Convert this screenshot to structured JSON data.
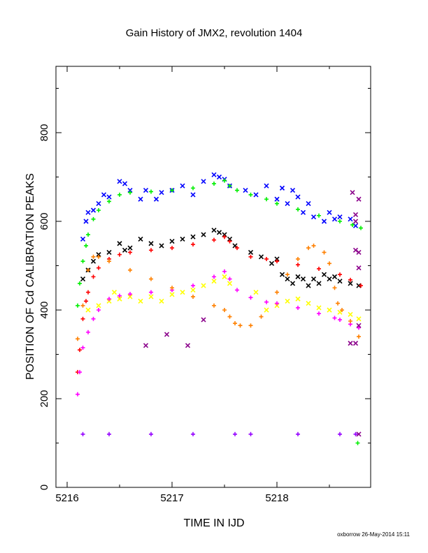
{
  "chart_data": {
    "type": "scatter",
    "title": "Gain History of JMX2, revolution 1404",
    "xlabel": "TIME IN IJD",
    "ylabel": "POSITION OF Cd CALIBRATION PEAKS",
    "credit": "oxborrow 26-May-2014 15:11",
    "xlim": [
      5215.9,
      5218.85
    ],
    "ylim": [
      0,
      950
    ],
    "x_ticks": [
      5216,
      5217,
      5218
    ],
    "y_ticks": [
      0,
      200,
      400,
      600,
      800
    ],
    "grid": false,
    "series": [
      {
        "color": "#0000ff",
        "marker": "x",
        "points": [
          [
            5216.15,
            560
          ],
          [
            5216.18,
            600
          ],
          [
            5216.2,
            620
          ],
          [
            5216.25,
            625
          ],
          [
            5216.3,
            640
          ],
          [
            5216.35,
            660
          ],
          [
            5216.4,
            655
          ],
          [
            5216.5,
            690
          ],
          [
            5216.55,
            685
          ],
          [
            5216.6,
            670
          ],
          [
            5216.7,
            650
          ],
          [
            5216.75,
            670
          ],
          [
            5216.85,
            650
          ],
          [
            5216.9,
            665
          ],
          [
            5217.0,
            670
          ],
          [
            5217.1,
            680
          ],
          [
            5217.2,
            660
          ],
          [
            5217.3,
            690
          ],
          [
            5217.4,
            705
          ],
          [
            5217.45,
            700
          ],
          [
            5217.5,
            695
          ],
          [
            5217.55,
            680
          ],
          [
            5217.7,
            670
          ],
          [
            5217.8,
            660
          ],
          [
            5217.9,
            680
          ],
          [
            5218.0,
            650
          ],
          [
            5218.05,
            675
          ],
          [
            5218.1,
            640
          ],
          [
            5218.15,
            670
          ],
          [
            5218.2,
            655
          ],
          [
            5218.25,
            620
          ],
          [
            5218.3,
            640
          ],
          [
            5218.35,
            610
          ],
          [
            5218.45,
            600
          ],
          [
            5218.5,
            620
          ],
          [
            5218.55,
            605
          ],
          [
            5218.6,
            610
          ],
          [
            5218.7,
            605
          ],
          [
            5218.75,
            590
          ]
        ]
      },
      {
        "color": "#00ee00",
        "marker": "+",
        "points": [
          [
            5216.1,
            410
          ],
          [
            5216.12,
            460
          ],
          [
            5216.15,
            510
          ],
          [
            5216.18,
            545
          ],
          [
            5216.2,
            570
          ],
          [
            5216.25,
            605
          ],
          [
            5216.3,
            625
          ],
          [
            5216.4,
            645
          ],
          [
            5216.5,
            660
          ],
          [
            5216.6,
            665
          ],
          [
            5216.8,
            667
          ],
          [
            5217.0,
            670
          ],
          [
            5217.2,
            675
          ],
          [
            5217.4,
            685
          ],
          [
            5217.5,
            692
          ],
          [
            5217.55,
            680
          ],
          [
            5217.62,
            670
          ],
          [
            5217.75,
            660
          ],
          [
            5217.9,
            650
          ],
          [
            5218.0,
            640
          ],
          [
            5218.2,
            627
          ],
          [
            5218.4,
            613
          ],
          [
            5218.6,
            600
          ],
          [
            5218.72,
            592
          ],
          [
            5218.8,
            585
          ],
          [
            5218.77,
            100
          ]
        ]
      },
      {
        "color": "#000000",
        "marker": "x",
        "points": [
          [
            5216.15,
            470
          ],
          [
            5216.2,
            490
          ],
          [
            5216.25,
            510
          ],
          [
            5216.3,
            525
          ],
          [
            5216.4,
            530
          ],
          [
            5216.5,
            550
          ],
          [
            5216.55,
            535
          ],
          [
            5216.6,
            540
          ],
          [
            5216.7,
            560
          ],
          [
            5216.8,
            550
          ],
          [
            5216.9,
            545
          ],
          [
            5217.0,
            555
          ],
          [
            5217.1,
            560
          ],
          [
            5217.2,
            565
          ],
          [
            5217.3,
            570
          ],
          [
            5217.4,
            580
          ],
          [
            5217.45,
            575
          ],
          [
            5217.5,
            570
          ],
          [
            5217.55,
            560
          ],
          [
            5217.6,
            545
          ],
          [
            5217.75,
            530
          ],
          [
            5217.85,
            520
          ],
          [
            5217.95,
            505
          ],
          [
            5218.0,
            515
          ],
          [
            5218.05,
            480
          ],
          [
            5218.1,
            470
          ],
          [
            5218.15,
            460
          ],
          [
            5218.2,
            475
          ],
          [
            5218.25,
            470
          ],
          [
            5218.3,
            455
          ],
          [
            5218.35,
            470
          ],
          [
            5218.4,
            460
          ],
          [
            5218.45,
            480
          ],
          [
            5218.5,
            470
          ],
          [
            5218.55,
            475
          ],
          [
            5218.6,
            465
          ],
          [
            5218.7,
            460
          ],
          [
            5218.78,
            455
          ]
        ]
      },
      {
        "color": "#ff0000",
        "marker": "+",
        "points": [
          [
            5216.1,
            260
          ],
          [
            5216.12,
            310
          ],
          [
            5216.15,
            380
          ],
          [
            5216.18,
            420
          ],
          [
            5216.2,
            440
          ],
          [
            5216.25,
            475
          ],
          [
            5216.3,
            495
          ],
          [
            5216.4,
            515
          ],
          [
            5216.5,
            525
          ],
          [
            5216.6,
            530
          ],
          [
            5216.8,
            535
          ],
          [
            5217.0,
            540
          ],
          [
            5217.2,
            548
          ],
          [
            5217.4,
            558
          ],
          [
            5217.5,
            565
          ],
          [
            5217.55,
            555
          ],
          [
            5217.62,
            540
          ],
          [
            5217.75,
            520
          ],
          [
            5217.9,
            515
          ],
          [
            5218.0,
            510
          ],
          [
            5218.2,
            502
          ],
          [
            5218.4,
            493
          ],
          [
            5218.6,
            480
          ],
          [
            5218.7,
            468
          ],
          [
            5218.8,
            455
          ]
        ]
      },
      {
        "color": "#ffff00",
        "marker": "x",
        "points": [
          [
            5216.2,
            400
          ],
          [
            5216.3,
            410
          ],
          [
            5216.4,
            420
          ],
          [
            5216.45,
            440
          ],
          [
            5216.5,
            425
          ],
          [
            5216.6,
            430
          ],
          [
            5216.7,
            420
          ],
          [
            5216.8,
            430
          ],
          [
            5216.9,
            420
          ],
          [
            5217.0,
            435
          ],
          [
            5217.1,
            440
          ],
          [
            5217.2,
            445
          ],
          [
            5217.3,
            455
          ],
          [
            5217.4,
            465
          ],
          [
            5217.5,
            475
          ],
          [
            5217.55,
            460
          ],
          [
            5217.8,
            440
          ],
          [
            5217.9,
            400
          ],
          [
            5218.0,
            410
          ],
          [
            5218.1,
            420
          ],
          [
            5218.2,
            425
          ],
          [
            5218.3,
            415
          ],
          [
            5218.4,
            405
          ],
          [
            5218.5,
            400
          ],
          [
            5218.6,
            395
          ],
          [
            5218.7,
            390
          ],
          [
            5218.78,
            380
          ]
        ]
      },
      {
        "color": "#ff00ff",
        "marker": "+",
        "points": [
          [
            5216.1,
            210
          ],
          [
            5216.12,
            260
          ],
          [
            5216.15,
            315
          ],
          [
            5216.2,
            350
          ],
          [
            5216.25,
            380
          ],
          [
            5216.3,
            400
          ],
          [
            5216.4,
            425
          ],
          [
            5216.5,
            432
          ],
          [
            5216.6,
            436
          ],
          [
            5216.8,
            440
          ],
          [
            5217.0,
            445
          ],
          [
            5217.2,
            455
          ],
          [
            5217.4,
            475
          ],
          [
            5217.5,
            487
          ],
          [
            5217.55,
            470
          ],
          [
            5217.62,
            445
          ],
          [
            5217.75,
            428
          ],
          [
            5217.9,
            418
          ],
          [
            5218.0,
            415
          ],
          [
            5218.2,
            405
          ],
          [
            5218.4,
            392
          ],
          [
            5218.55,
            382
          ],
          [
            5218.6,
            378
          ],
          [
            5218.7,
            368
          ],
          [
            5218.78,
            360
          ]
        ]
      },
      {
        "color": "#8b008b",
        "marker": "x",
        "points": [
          [
            5216.75,
            320
          ],
          [
            5216.95,
            345
          ],
          [
            5217.15,
            320
          ],
          [
            5217.3,
            378
          ],
          [
            5218.7,
            325
          ],
          [
            5218.75,
            325
          ],
          [
            5218.78,
            365
          ],
          [
            5218.78,
            495
          ],
          [
            5218.78,
            530
          ],
          [
            5218.75,
            535
          ],
          [
            5218.75,
            600
          ],
          [
            5218.75,
            615
          ],
          [
            5218.78,
            650
          ],
          [
            5218.72,
            665
          ],
          [
            5218.78,
            120
          ]
        ]
      },
      {
        "color": "#ff8000",
        "marker": "+",
        "points": [
          [
            5216.1,
            335
          ],
          [
            5216.15,
            410
          ],
          [
            5216.2,
            490
          ],
          [
            5216.25,
            520
          ],
          [
            5216.3,
            520
          ],
          [
            5216.4,
            510
          ],
          [
            5216.6,
            490
          ],
          [
            5216.8,
            470
          ],
          [
            5217.0,
            450
          ],
          [
            5217.2,
            430
          ],
          [
            5217.4,
            410
          ],
          [
            5217.5,
            400
          ],
          [
            5217.55,
            385
          ],
          [
            5217.6,
            370
          ],
          [
            5217.65,
            365
          ],
          [
            5217.75,
            365
          ],
          [
            5217.85,
            385
          ],
          [
            5218.0,
            440
          ],
          [
            5218.1,
            480
          ],
          [
            5218.2,
            515
          ],
          [
            5218.3,
            540
          ],
          [
            5218.35,
            545
          ],
          [
            5218.45,
            530
          ],
          [
            5218.5,
            505
          ],
          [
            5218.55,
            450
          ],
          [
            5218.58,
            415
          ],
          [
            5218.62,
            400
          ],
          [
            5218.7,
            375
          ],
          [
            5218.78,
            340
          ]
        ]
      },
      {
        "color": "#9400ff",
        "marker": "+",
        "points": [
          [
            5216.15,
            120
          ],
          [
            5216.4,
            120
          ],
          [
            5216.8,
            120
          ],
          [
            5217.2,
            120
          ],
          [
            5217.6,
            120
          ],
          [
            5217.75,
            120
          ],
          [
            5218.2,
            120
          ],
          [
            5218.6,
            120
          ],
          [
            5218.75,
            120
          ]
        ]
      }
    ]
  }
}
